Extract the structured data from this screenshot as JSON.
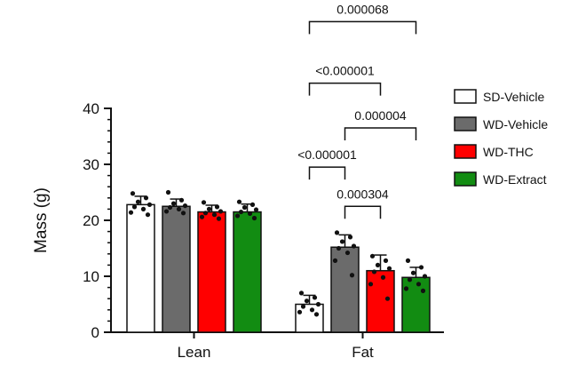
{
  "chart_data": {
    "type": "bar",
    "xlabel": "",
    "ylabel": "Mass (g)",
    "ylim": [
      0,
      40
    ],
    "yticks": [
      "0",
      "10",
      "20",
      "30",
      "40"
    ],
    "categories": [
      "Lean",
      "Fat"
    ],
    "grid": false,
    "legend_position": "right",
    "series": [
      {
        "name": "SD-Vehicle",
        "color": "#ffffff",
        "values": [
          22.8,
          5.0
        ],
        "errors": [
          1.5,
          1.6
        ],
        "points": [
          [
            24.8,
            24.0,
            23.3,
            22.8,
            22.4,
            22.0,
            21.4,
            21.0
          ],
          [
            7.0,
            6.2,
            5.6,
            5.0,
            4.6,
            4.0,
            3.6,
            3.2
          ]
        ]
      },
      {
        "name": "WD-Vehicle",
        "color": "#6b6b6b",
        "values": [
          22.5,
          15.2
        ],
        "errors": [
          1.3,
          2.2
        ],
        "points": [
          [
            25.0,
            23.6,
            23.0,
            22.6,
            22.3,
            22.0,
            21.6,
            21.3
          ],
          [
            17.8,
            17.0,
            16.2,
            15.4,
            15.0,
            14.2,
            12.8,
            10.2
          ]
        ]
      },
      {
        "name": "WD-THC",
        "color": "#ff0000",
        "values": [
          21.5,
          11.0
        ],
        "errors": [
          1.2,
          2.8
        ],
        "points": [
          [
            23.2,
            22.4,
            22.0,
            21.6,
            21.3,
            21.0,
            20.6,
            20.3
          ],
          [
            13.6,
            12.8,
            12.0,
            11.4,
            10.8,
            9.8,
            8.6,
            6.0
          ]
        ]
      },
      {
        "name": "WD-Extract",
        "color": "#128c12",
        "values": [
          21.5,
          9.8
        ],
        "errors": [
          1.4,
          1.8
        ],
        "points": [
          [
            23.3,
            22.8,
            22.3,
            21.9,
            21.5,
            21.2,
            20.8,
            20.4
          ],
          [
            12.8,
            11.6,
            10.6,
            10.0,
            9.4,
            8.6,
            7.8,
            7.4
          ]
        ]
      }
    ],
    "annotations": [
      {
        "label": "0.000068",
        "from_series": 0,
        "to_series": 3,
        "category": 1,
        "level": 55.5
      },
      {
        "label": "<0.000001",
        "from_series": 0,
        "to_series": 2,
        "category": 1,
        "level": 44.5
      },
      {
        "label": "0.000004",
        "from_series": 1,
        "to_series": 3,
        "category": 1,
        "level": 36.5
      },
      {
        "label": "<0.000001",
        "from_series": 0,
        "to_series": 1,
        "category": 1,
        "level": 29.5
      },
      {
        "label": "0.000304",
        "from_series": 1,
        "to_series": 2,
        "category": 1,
        "level": 22.5
      }
    ]
  }
}
